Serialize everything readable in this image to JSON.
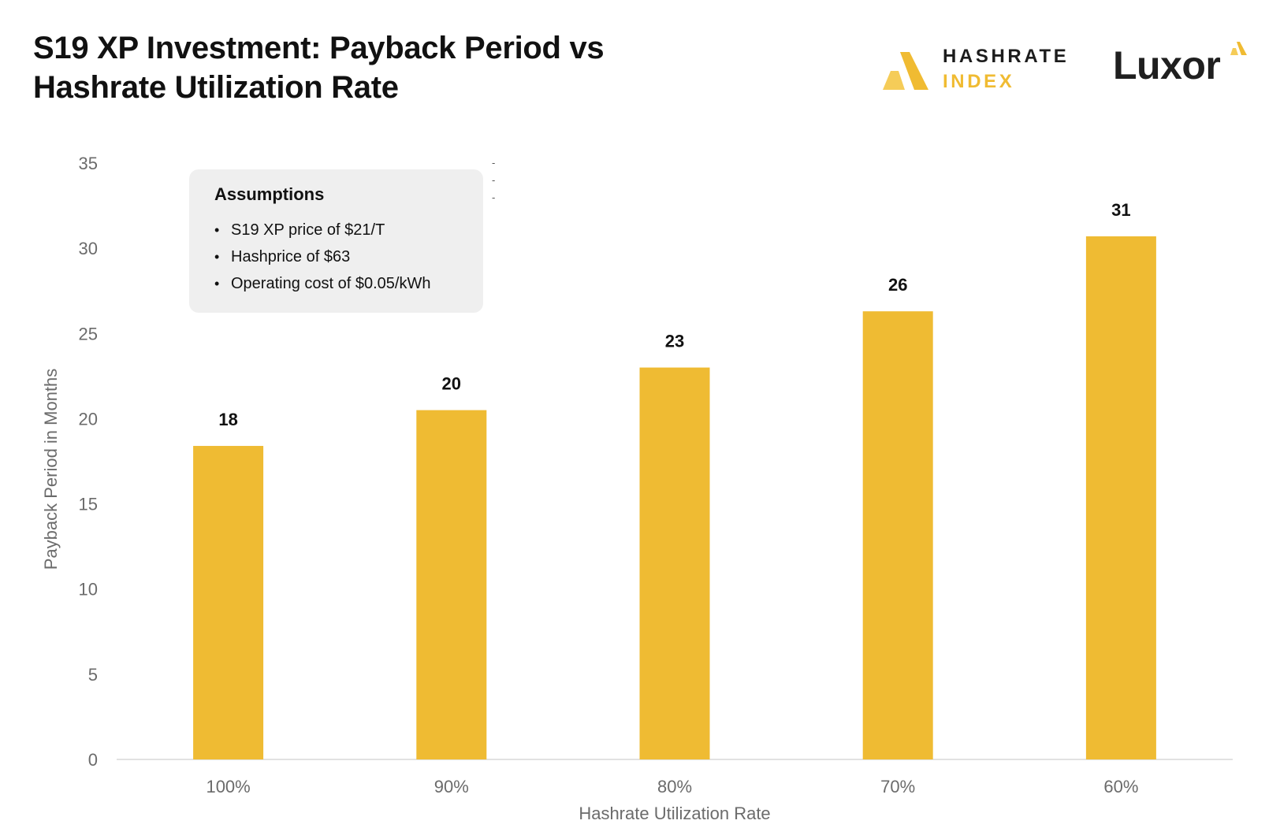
{
  "header": {
    "title": "S19 XP Investment: Payback Period vs Hashrate Utilization Rate"
  },
  "logos": {
    "hashrate_index": {
      "line1": "HASHRATE",
      "line2": "INDEX",
      "icon": "hashrate-index-logo-icon",
      "color": "#f0bb32"
    },
    "luxor": {
      "text": "Luxor",
      "icon": "luxor-logo-icon",
      "color": "#f0bb32"
    }
  },
  "assumptions": {
    "title": "Assumptions",
    "items": [
      "S19 XP price of $21/T",
      "Hashprice of $63",
      "Operating cost of $0.05/kWh"
    ]
  },
  "stray_marks": [
    "-",
    "-",
    "-"
  ],
  "colors": {
    "bar": "#efbb33",
    "axis_text": "#6b6b6b",
    "baseline": "#d9d9d9"
  },
  "chart_data": {
    "type": "bar",
    "title": "S19 XP Investment: Payback Period vs Hashrate Utilization Rate",
    "xlabel": "Hashrate Utilization Rate",
    "ylabel": "Payback Period in Months",
    "categories": [
      "100%",
      "90%",
      "80%",
      "70%",
      "60%"
    ],
    "values": [
      18.4,
      20.5,
      23.0,
      26.3,
      30.7
    ],
    "data_labels": [
      "18",
      "20",
      "23",
      "26",
      "31"
    ],
    "ylim": [
      0,
      35
    ],
    "yticks": [
      0,
      5,
      10,
      15,
      20,
      25,
      30,
      35
    ],
    "grid": false,
    "legend": "none"
  }
}
